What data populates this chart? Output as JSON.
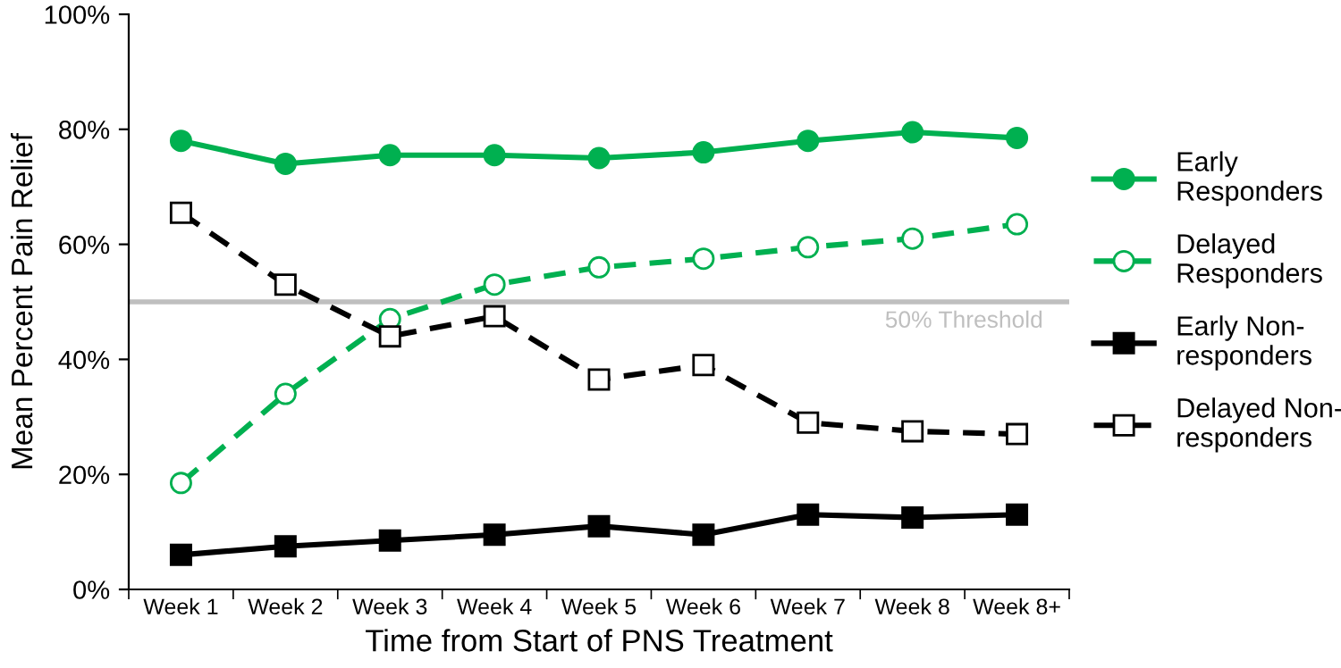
{
  "chart_data": {
    "type": "line",
    "xlabel": "Time from Start of PNS Treatment",
    "ylabel": "Mean Percent Pain Relief",
    "categories": [
      "Week 1",
      "Week 2",
      "Week 3",
      "Week 4",
      "Week 5",
      "Week 6",
      "Week 7",
      "Week 8",
      "Week 8+"
    ],
    "series": [
      {
        "name": "Early\nResponders",
        "color": "#00b050",
        "marker": "circle",
        "line_style": "solid",
        "values": [
          78,
          74,
          75.5,
          75.5,
          75,
          76,
          78,
          79.5,
          78.5
        ]
      },
      {
        "name": "Delayed\nResponders",
        "color": "#00b050",
        "marker": "circle",
        "line_style": "dashed",
        "values": [
          18.5,
          34,
          47,
          53,
          56,
          57.5,
          59.5,
          61,
          63.5
        ]
      },
      {
        "name": "Early Non-\nresponders",
        "color": "#000000",
        "marker": "square",
        "line_style": "solid",
        "values": [
          6,
          7.5,
          8.5,
          9.5,
          11,
          9.5,
          13,
          12.5,
          13
        ]
      },
      {
        "name": "Delayed Non-\nresponders",
        "color": "#000000",
        "marker": "square",
        "line_style": "dashed",
        "values": [
          65.5,
          53,
          44,
          47.5,
          36.5,
          39,
          29,
          27.5,
          27
        ]
      }
    ],
    "ylim": [
      0,
      100
    ],
    "yticks": [
      {
        "value": 0,
        "label": "0%"
      },
      {
        "value": 20,
        "label": "20%"
      },
      {
        "value": 40,
        "label": "40%"
      },
      {
        "value": 60,
        "label": "60%"
      },
      {
        "value": 80,
        "label": "80%"
      },
      {
        "value": 100,
        "label": "100%"
      }
    ],
    "ref_lines": [
      {
        "axis": "y",
        "value": 50,
        "label": "50% Threshold",
        "color": "#bfbfbf"
      }
    ],
    "grid": false,
    "legend": "right"
  }
}
